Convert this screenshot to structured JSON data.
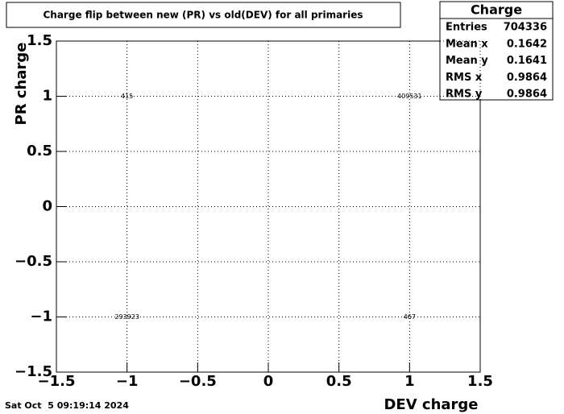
{
  "chart_data": {
    "type": "histogram2d-text",
    "title": "Charge flip between new (PR) vs old(DEV) for all primaries",
    "x_label": "DEV charge",
    "y_label": "PR charge",
    "x": [
      -1,
      1,
      -1,
      1
    ],
    "y": [
      1,
      1,
      -1,
      -1
    ],
    "values": [
      415,
      409531,
      293923,
      467
    ],
    "xlim": [
      -1.5,
      1.5
    ],
    "ylim": [
      -1.5,
      1.5
    ],
    "xticks": [
      {
        "value": -1.5,
        "label": "−1.5"
      },
      {
        "value": -1,
        "label": "−1"
      },
      {
        "value": -0.5,
        "label": "−0.5"
      },
      0,
      0.5,
      1,
      1.5
    ],
    "yticks": [
      {
        "value": -1.5,
        "label": "−1.5"
      },
      {
        "value": -1,
        "label": "−1"
      },
      {
        "value": -0.5,
        "label": "−0.5"
      },
      0,
      0.5,
      1,
      1.5
    ],
    "grid": true,
    "stats": {
      "title": "Charge",
      "rows": [
        {
          "label": "Entries",
          "value": 704336
        },
        {
          "label": "Mean x",
          "value": 0.1642
        },
        {
          "label": "Mean y",
          "value": 0.1641
        },
        {
          "label": "RMS x",
          "value": 0.9864
        },
        {
          "label": "RMS y",
          "value": 0.9864
        }
      ]
    },
    "timestamp": "Sat Oct  5 09:19:14 2024"
  }
}
